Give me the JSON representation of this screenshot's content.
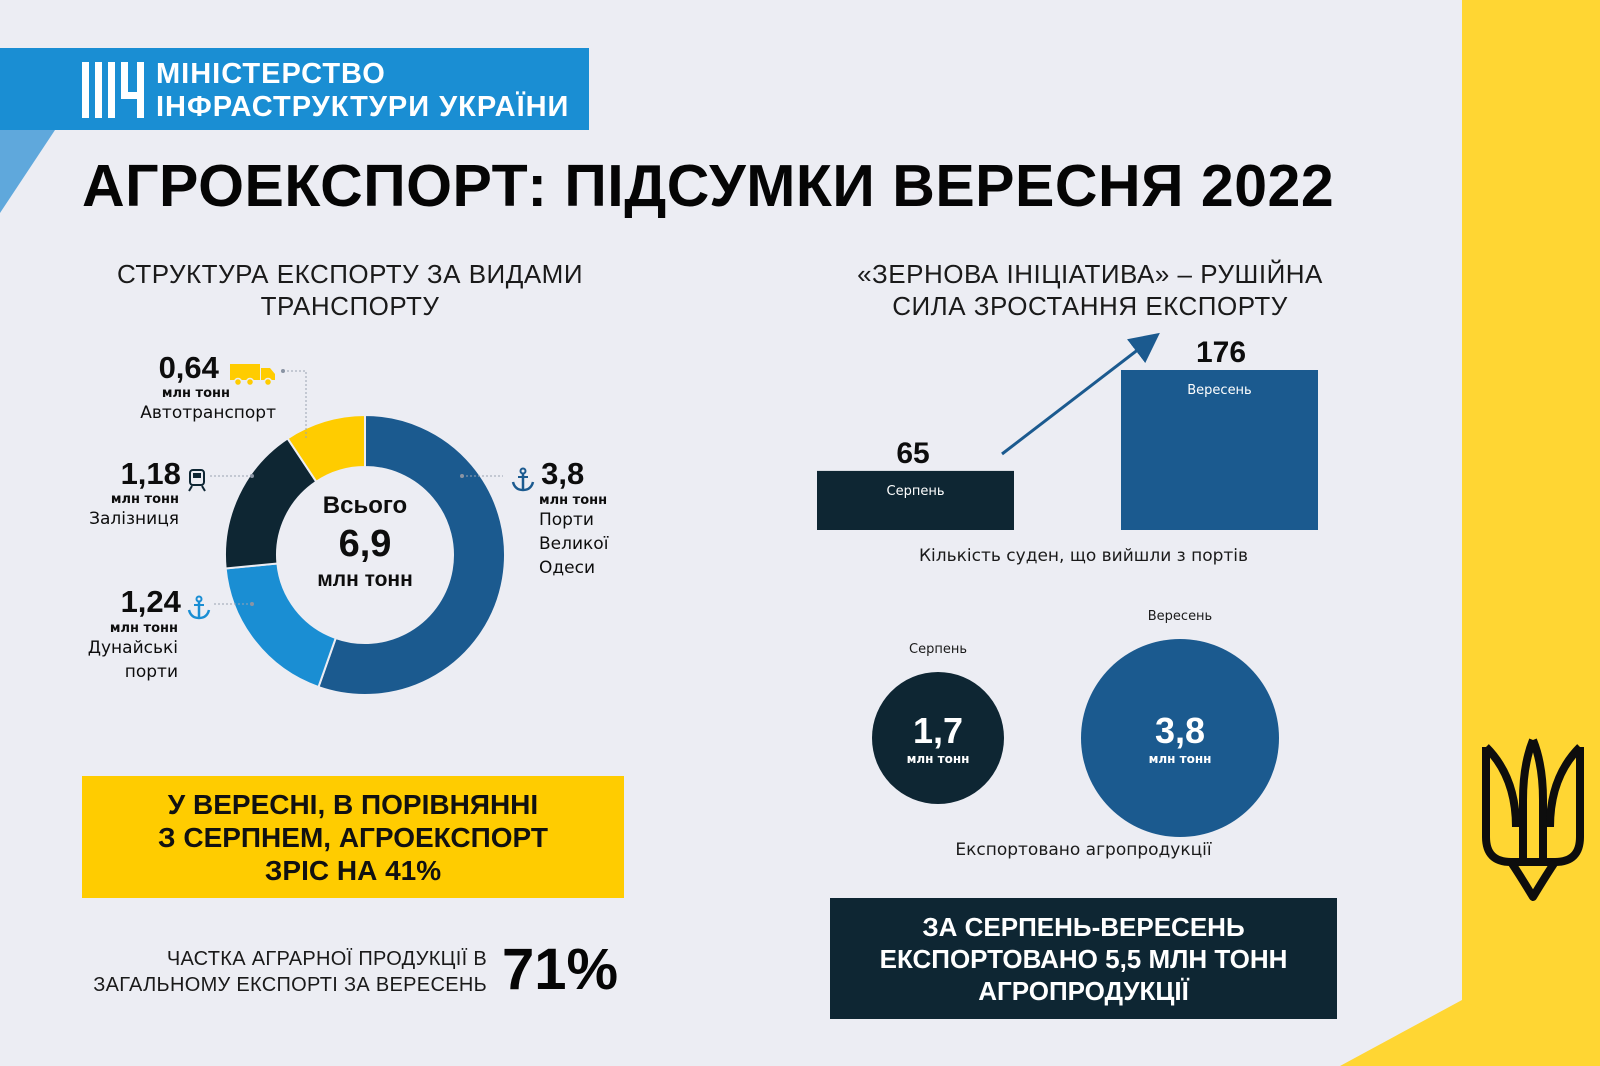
{
  "header": {
    "ministry_line1": "МІНІСТЕРСТВО",
    "ministry_line2": "ІНФРАСТРУКТУРИ УКРАЇНИ",
    "title": "АГРОЕКСПОРТ: ПІДСУМКИ ВЕРЕСНЯ 2022"
  },
  "colors": {
    "dark_navy": "#0e2633",
    "blue": "#1b5a8f",
    "light_blue": "#1a8ed3",
    "yellow": "#ffcc00",
    "background": "#ecedf3"
  },
  "donut_section": {
    "title_line1": "СТРУКТУРА ЕКСПОРТУ ЗА ВИДАМИ",
    "title_line2": "ТРАНСПОРТУ",
    "center_label": "Всього",
    "center_value": "6,9",
    "center_unit": "млн тонн",
    "unit": "млн тонн",
    "items": [
      {
        "value": "0,64",
        "label_lines": [
          "Автотранспорт"
        ],
        "icon": "truck-icon"
      },
      {
        "value": "1,18",
        "label_lines": [
          "Залізниця"
        ],
        "icon": "train-icon"
      },
      {
        "value": "1,24",
        "label_lines": [
          "Дунайські",
          "порти"
        ],
        "icon": "anchor-icon"
      },
      {
        "value": "3,8",
        "label_lines": [
          "Порти",
          "Великої",
          "Одеси"
        ],
        "icon": "anchor-icon"
      }
    ]
  },
  "bar_section": {
    "title_line1": "«ЗЕРНОВА ІНІЦІАТИВА» – РУШІЙНА",
    "title_line2": "СИЛА ЗРОСТАННЯ ЕКСПОРТУ",
    "caption": "Кількість суден, що вийшли з портів"
  },
  "circle_section": {
    "caption": "Експортовано агропродукції",
    "unit": "млн тонн"
  },
  "callouts": {
    "growth_line1": "У ВЕРЕСНІ, В ПОРІВНЯННІ",
    "growth_line2": "З СЕРПНЕМ, АГРОЕКСПОРТ",
    "growth_line3": "ЗРІС НА 41%",
    "share_line1": "ЧАСТКА АГРАРНОЇ ПРОДУКЦІЇ В",
    "share_line2": "ЗАГАЛЬНОМУ ЕКСПОРТІ ЗА ВЕРЕСЕНЬ",
    "share_value": "71%",
    "total_line1": "ЗА СЕРПЕНЬ-ВЕРЕСЕНЬ",
    "total_line2": "ЕКСПОРТОВАНО 5,5 МЛН ТОНН",
    "total_line3": "АГРОПРОДУКЦІЇ"
  },
  "chart_data": [
    {
      "type": "pie",
      "title": "СТРУКТУРА ЕКСПОРТУ ЗА ВИДАМИ ТРАНСПОРТУ",
      "categories": [
        "Порти Великої Одеси",
        "Дунайські порти",
        "Залізниця",
        "Автотранспорт"
      ],
      "values": [
        3.8,
        1.24,
        1.18,
        0.64
      ],
      "colors": [
        "#1b5a8f",
        "#1a8ed3",
        "#0e2633",
        "#ffcc00"
      ],
      "total": 6.9,
      "unit": "млн тонн"
    },
    {
      "type": "bar",
      "title": "«ЗЕРНОВА ІНІЦІАТИВА» – РУШІЙНА СИЛА ЗРОСТАННЯ ЕКСПОРТУ",
      "categories": [
        "Серпень",
        "Вересень"
      ],
      "values": [
        65,
        176
      ],
      "value_labels": [
        "65",
        "176"
      ],
      "colors": [
        "#0e2633",
        "#1b5a8f"
      ],
      "xlabel": "Кількість суден, що вийшли з портів",
      "ylim": [
        0,
        176
      ]
    },
    {
      "type": "scatter",
      "categories": [
        "Серпень",
        "Вересень"
      ],
      "values": [
        1.7,
        3.8
      ],
      "value_labels": [
        "1,7",
        "3,8"
      ],
      "colors": [
        "#0e2633",
        "#1b5a8f"
      ],
      "unit": "млн тонн",
      "xlabel": "Експортовано агропродукції"
    }
  ]
}
